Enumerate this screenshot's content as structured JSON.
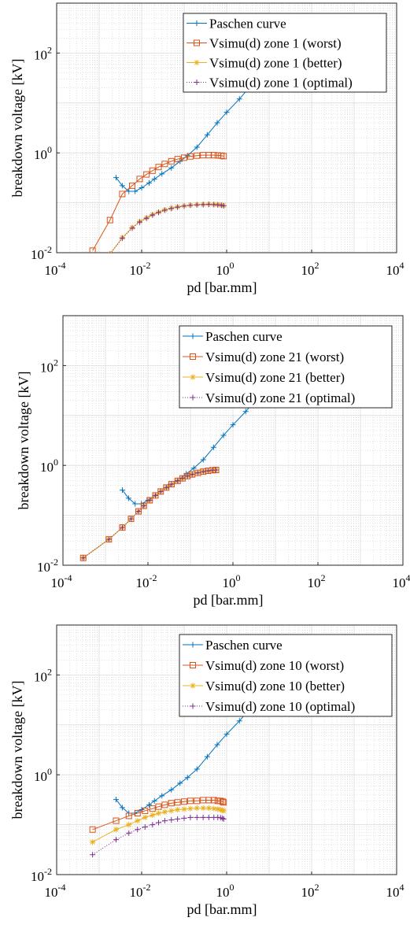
{
  "chart_data": [
    {
      "type": "line",
      "xscale": "log",
      "yscale": "log",
      "xlim": [
        0.0001,
        10000
      ],
      "ylim": [
        0.01,
        1000
      ],
      "grid": true,
      "minor_grid": true,
      "legend_position": "top-right",
      "xlabel": "pd [bar.mm]",
      "ylabel": "breakdown voltage [kV]",
      "x_ticks": [
        {
          "base": "10",
          "exp": "-4"
        },
        {
          "base": "10",
          "exp": "-2"
        },
        {
          "base": "10",
          "exp": "0"
        },
        {
          "base": "10",
          "exp": "2"
        },
        {
          "base": "10",
          "exp": "4"
        }
      ],
      "y_ticks": [
        {
          "base": "10",
          "exp": "-2"
        },
        {
          "base": "10",
          "exp": "0"
        },
        {
          "base": "10",
          "exp": "2"
        }
      ],
      "series": [
        {
          "name": "Paschen curve",
          "color": "#0072BD",
          "marker": "plus",
          "line": "solid",
          "x": [
            0.0025,
            0.0035,
            0.005,
            0.007,
            0.01,
            0.015,
            0.02,
            0.03,
            0.05,
            0.08,
            0.12,
            0.2,
            0.35,
            0.6,
            1,
            2,
            4,
            8,
            15,
            30
          ],
          "y": [
            0.32,
            0.22,
            0.17,
            0.17,
            0.2,
            0.25,
            0.3,
            0.38,
            0.5,
            0.68,
            0.88,
            1.3,
            2.3,
            4,
            6.5,
            12,
            24,
            60,
            150,
            450
          ]
        },
        {
          "name": "Vsimu(d) zone 1 (worst)",
          "color": "#D95319",
          "marker": "square",
          "line": "solid",
          "x": [
            0.0007,
            0.0018,
            0.0035,
            0.006,
            0.009,
            0.013,
            0.018,
            0.025,
            0.035,
            0.05,
            0.07,
            0.1,
            0.14,
            0.2,
            0.28,
            0.38,
            0.5,
            0.62,
            0.75,
            0.85
          ],
          "y": [
            0.011,
            0.045,
            0.15,
            0.22,
            0.3,
            0.37,
            0.44,
            0.52,
            0.6,
            0.68,
            0.75,
            0.8,
            0.85,
            0.88,
            0.9,
            0.9,
            0.9,
            0.89,
            0.88,
            0.86
          ]
        },
        {
          "name": "Vsimu(d)  zone 1 (better)",
          "color": "#EDB120",
          "marker": "asterisk",
          "line": "solid",
          "x": [
            0.0007,
            0.0018,
            0.0035,
            0.006,
            0.009,
            0.013,
            0.018,
            0.025,
            0.035,
            0.05,
            0.07,
            0.1,
            0.14,
            0.2,
            0.28,
            0.38,
            0.5,
            0.62,
            0.75,
            0.85
          ],
          "y": [
            0.0035,
            0.0095,
            0.02,
            0.032,
            0.042,
            0.05,
            0.058,
            0.065,
            0.072,
            0.078,
            0.083,
            0.087,
            0.09,
            0.092,
            0.093,
            0.094,
            0.093,
            0.092,
            0.09,
            0.088
          ]
        },
        {
          "name": "Vsimu(d) zone 1 (optimal)",
          "color": "#7E2F8E",
          "marker": "plus",
          "line": "dotted",
          "x": [
            0.0007,
            0.0018,
            0.0035,
            0.006,
            0.009,
            0.013,
            0.018,
            0.025,
            0.035,
            0.05,
            0.07,
            0.1,
            0.14,
            0.2,
            0.28,
            0.38,
            0.5,
            0.62,
            0.75,
            0.85
          ],
          "y": [
            0.0034,
            0.0093,
            0.0195,
            0.031,
            0.041,
            0.049,
            0.057,
            0.064,
            0.071,
            0.077,
            0.082,
            0.086,
            0.089,
            0.091,
            0.092,
            0.093,
            0.092,
            0.091,
            0.089,
            0.087
          ]
        }
      ]
    },
    {
      "type": "line",
      "xscale": "log",
      "yscale": "log",
      "xlim": [
        0.0001,
        10000
      ],
      "ylim": [
        0.01,
        1000
      ],
      "grid": true,
      "minor_grid": true,
      "legend_position": "top-right",
      "xlabel": "pd [bar.mm]",
      "ylabel": "breakdown voltage [kV]",
      "x_ticks": [
        {
          "base": "10",
          "exp": "-4"
        },
        {
          "base": "10",
          "exp": "-2"
        },
        {
          "base": "10",
          "exp": "0"
        },
        {
          "base": "10",
          "exp": "2"
        },
        {
          "base": "10",
          "exp": "4"
        }
      ],
      "y_ticks": [
        {
          "base": "10",
          "exp": "-2"
        },
        {
          "base": "10",
          "exp": "0"
        },
        {
          "base": "10",
          "exp": "2"
        }
      ],
      "series": [
        {
          "name": "Paschen curve",
          "color": "#0072BD",
          "marker": "plus",
          "line": "solid",
          "x": [
            0.0025,
            0.0035,
            0.005,
            0.007,
            0.01,
            0.015,
            0.02,
            0.03,
            0.05,
            0.08,
            0.12,
            0.2,
            0.35,
            0.6,
            1,
            2,
            4,
            8,
            15,
            30
          ],
          "y": [
            0.32,
            0.22,
            0.17,
            0.17,
            0.2,
            0.25,
            0.3,
            0.38,
            0.5,
            0.68,
            0.88,
            1.3,
            2.3,
            4,
            6.5,
            12,
            24,
            60,
            150,
            450
          ]
        },
        {
          "name": "Vsimu(d) zone 21 (worst)",
          "color": "#D95319",
          "marker": "square",
          "line": "solid",
          "x": [
            0.0003,
            0.0012,
            0.0025,
            0.004,
            0.006,
            0.008,
            0.011,
            0.015,
            0.02,
            0.027,
            0.036,
            0.05,
            0.065,
            0.085,
            0.11,
            0.15,
            0.2,
            0.26,
            0.33,
            0.4
          ],
          "y": [
            0.014,
            0.033,
            0.057,
            0.085,
            0.12,
            0.155,
            0.2,
            0.25,
            0.3,
            0.36,
            0.42,
            0.49,
            0.55,
            0.61,
            0.66,
            0.71,
            0.75,
            0.78,
            0.8,
            0.81
          ]
        },
        {
          "name": "Vsimu(d) zone 21 (better)",
          "color": "#EDB120",
          "marker": "asterisk",
          "line": "solid",
          "x": [
            0.0003,
            0.0012,
            0.0025,
            0.004,
            0.006,
            0.008,
            0.011,
            0.015,
            0.02,
            0.027,
            0.036,
            0.05,
            0.065,
            0.085,
            0.11,
            0.15,
            0.2,
            0.26,
            0.33,
            0.4
          ],
          "y": [
            0.014,
            0.033,
            0.057,
            0.085,
            0.12,
            0.155,
            0.2,
            0.25,
            0.3,
            0.36,
            0.42,
            0.49,
            0.55,
            0.61,
            0.66,
            0.71,
            0.75,
            0.78,
            0.8,
            0.81
          ]
        },
        {
          "name": "Vsimu(d) zone 21 (optimal)",
          "color": "#7E2F8E",
          "marker": "plus",
          "line": "dotted",
          "x": [
            0.0003,
            0.0012,
            0.0025,
            0.004,
            0.006,
            0.008,
            0.011,
            0.015,
            0.02,
            0.027,
            0.036,
            0.05,
            0.065,
            0.085,
            0.11,
            0.15,
            0.2,
            0.26,
            0.33,
            0.4
          ],
          "y": [
            0.014,
            0.033,
            0.057,
            0.085,
            0.12,
            0.155,
            0.2,
            0.25,
            0.3,
            0.36,
            0.42,
            0.49,
            0.55,
            0.61,
            0.66,
            0.71,
            0.75,
            0.78,
            0.8,
            0.81
          ]
        }
      ]
    },
    {
      "type": "line",
      "xscale": "log",
      "yscale": "log",
      "xlim": [
        0.0001,
        10000
      ],
      "ylim": [
        0.01,
        1000
      ],
      "grid": true,
      "minor_grid": true,
      "legend_position": "top-right",
      "xlabel": "pd [bar.mm]",
      "ylabel": "breakdown voltage [kV]",
      "x_ticks": [
        {
          "base": "10",
          "exp": "-4"
        },
        {
          "base": "10",
          "exp": "-2"
        },
        {
          "base": "10",
          "exp": "0"
        },
        {
          "base": "10",
          "exp": "2"
        },
        {
          "base": "10",
          "exp": "4"
        }
      ],
      "y_ticks": [
        {
          "base": "10",
          "exp": "-2"
        },
        {
          "base": "10",
          "exp": "0"
        },
        {
          "base": "10",
          "exp": "2"
        }
      ],
      "series": [
        {
          "name": "Paschen curve",
          "color": "#0072BD",
          "marker": "plus",
          "line": "solid",
          "x": [
            0.0025,
            0.0035,
            0.005,
            0.007,
            0.01,
            0.015,
            0.02,
            0.03,
            0.05,
            0.08,
            0.12,
            0.2,
            0.35,
            0.6,
            1,
            2,
            4,
            8,
            15,
            30
          ],
          "y": [
            0.32,
            0.22,
            0.17,
            0.17,
            0.2,
            0.25,
            0.3,
            0.38,
            0.5,
            0.68,
            0.88,
            1.3,
            2.3,
            4,
            6.5,
            12,
            24,
            60,
            150,
            450
          ]
        },
        {
          "name": "Vsimu(d) zone 10 (worst)",
          "color": "#D95319",
          "marker": "square",
          "line": "solid",
          "x": [
            0.0007,
            0.0025,
            0.005,
            0.008,
            0.012,
            0.018,
            0.025,
            0.035,
            0.05,
            0.07,
            0.1,
            0.14,
            0.2,
            0.28,
            0.38,
            0.5,
            0.62,
            0.72,
            0.8,
            0.85
          ],
          "y": [
            0.08,
            0.12,
            0.15,
            0.17,
            0.19,
            0.21,
            0.23,
            0.25,
            0.27,
            0.28,
            0.29,
            0.3,
            0.3,
            0.31,
            0.31,
            0.31,
            0.3,
            0.3,
            0.29,
            0.28
          ]
        },
        {
          "name": "Vsimu(d) zone 10 (better)",
          "color": "#EDB120",
          "marker": "asterisk",
          "line": "solid",
          "x": [
            0.0007,
            0.0025,
            0.005,
            0.008,
            0.012,
            0.018,
            0.025,
            0.035,
            0.05,
            0.07,
            0.1,
            0.14,
            0.2,
            0.28,
            0.38,
            0.5,
            0.62,
            0.72,
            0.8,
            0.85
          ],
          "y": [
            0.045,
            0.08,
            0.1,
            0.12,
            0.14,
            0.155,
            0.17,
            0.18,
            0.19,
            0.2,
            0.205,
            0.21,
            0.215,
            0.215,
            0.215,
            0.21,
            0.205,
            0.2,
            0.195,
            0.19
          ]
        },
        {
          "name": "Vsimu(d) zone 10 (optimal)",
          "color": "#7E2F8E",
          "marker": "plus",
          "line": "dotted",
          "x": [
            0.0007,
            0.0025,
            0.005,
            0.008,
            0.012,
            0.018,
            0.025,
            0.035,
            0.05,
            0.07,
            0.1,
            0.14,
            0.2,
            0.28,
            0.38,
            0.5,
            0.62,
            0.72,
            0.8,
            0.85
          ],
          "y": [
            0.025,
            0.05,
            0.068,
            0.08,
            0.09,
            0.1,
            0.11,
            0.12,
            0.125,
            0.13,
            0.135,
            0.14,
            0.14,
            0.14,
            0.14,
            0.14,
            0.14,
            0.138,
            0.135,
            0.13
          ]
        }
      ]
    }
  ]
}
